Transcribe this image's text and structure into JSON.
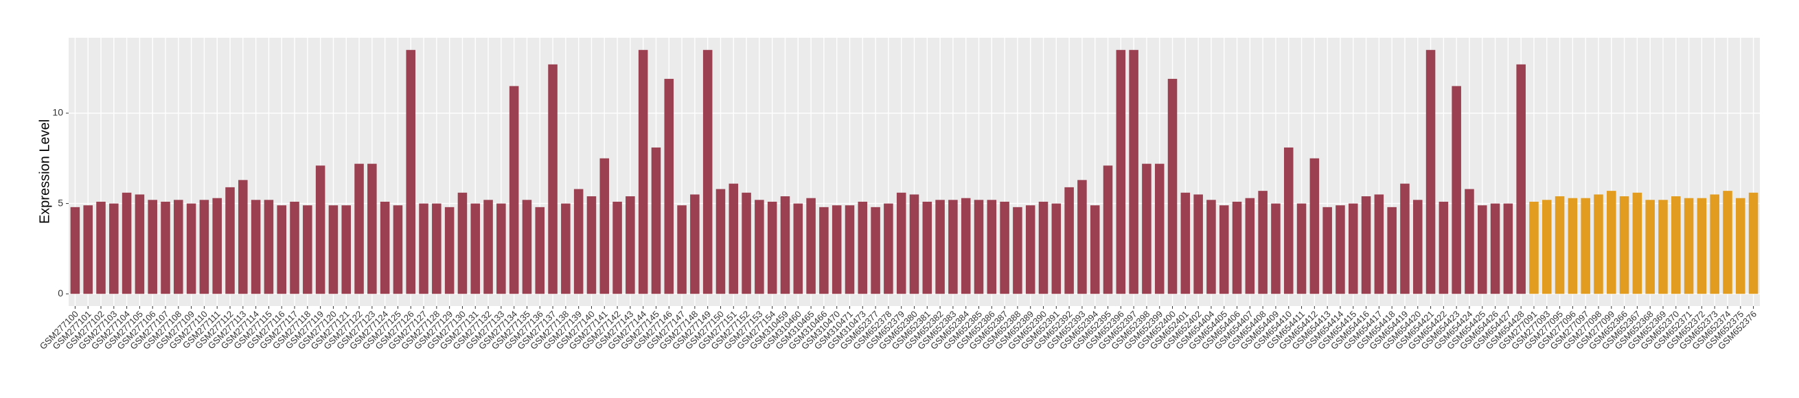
{
  "chart_data": {
    "type": "bar",
    "y_label": "Expression Level",
    "categories": [
      "GSM277100",
      "GSM277101",
      "GSM277102",
      "GSM277103",
      "GSM277104",
      "GSM277105",
      "GSM277106",
      "GSM277107",
      "GSM277108",
      "GSM277109",
      "GSM277110",
      "GSM277111",
      "GSM277112",
      "GSM277113",
      "GSM277114",
      "GSM277115",
      "GSM277116",
      "GSM277117",
      "GSM277118",
      "GSM277119",
      "GSM277120",
      "GSM277121",
      "GSM277122",
      "GSM277123",
      "GSM277124",
      "GSM277125",
      "GSM277126",
      "GSM277127",
      "GSM277128",
      "GSM277129",
      "GSM277130",
      "GSM277131",
      "GSM277132",
      "GSM277133",
      "GSM277134",
      "GSM277135",
      "GSM277136",
      "GSM277137",
      "GSM277138",
      "GSM277139",
      "GSM277140",
      "GSM277141",
      "GSM277142",
      "GSM277143",
      "GSM277144",
      "GSM277145",
      "GSM277146",
      "GSM277147",
      "GSM277148",
      "GSM277149",
      "GSM277150",
      "GSM277151",
      "GSM277152",
      "GSM277153",
      "GSM277154",
      "GSM310459",
      "GSM310460",
      "GSM310465",
      "GSM310466",
      "GSM310470",
      "GSM310471",
      "GSM310473",
      "GSM652377",
      "GSM652378",
      "GSM652379",
      "GSM652380",
      "GSM652381",
      "GSM652382",
      "GSM652383",
      "GSM652384",
      "GSM652385",
      "GSM652386",
      "GSM652387",
      "GSM652388",
      "GSM652389",
      "GSM652390",
      "GSM652391",
      "GSM652392",
      "GSM652393",
      "GSM652394",
      "GSM652395",
      "GSM652396",
      "GSM652397",
      "GSM652398",
      "GSM652399",
      "GSM652400",
      "GSM652401",
      "GSM652402",
      "GSM654404",
      "GSM654405",
      "GSM654406",
      "GSM654407",
      "GSM654408",
      "GSM654409",
      "GSM654410",
      "GSM654411",
      "GSM654412",
      "GSM654413",
      "GSM654414",
      "GSM654415",
      "GSM654416",
      "GSM654417",
      "GSM654418",
      "GSM654419",
      "GSM654420",
      "GSM654421",
      "GSM654422",
      "GSM654423",
      "GSM654424",
      "GSM654425",
      "GSM654426",
      "GSM654427",
      "GSM654428",
      "GSM277091",
      "GSM277093",
      "GSM277095",
      "GSM277096",
      "GSM277097",
      "GSM277098",
      "GSM277099",
      "GSM652366",
      "GSM652367",
      "GSM652368",
      "GSM652369",
      "GSM652370",
      "GSM652371",
      "GSM652372",
      "GSM652373",
      "GSM652374",
      "GSM652375",
      "GSM652376"
    ],
    "values": [
      4.8,
      4.9,
      5.1,
      5.0,
      5.6,
      5.5,
      5.2,
      5.1,
      5.2,
      5.0,
      5.2,
      5.3,
      5.9,
      6.3,
      5.2,
      5.2,
      4.9,
      5.1,
      4.9,
      7.1,
      4.9,
      4.9,
      7.2,
      7.2,
      5.1,
      4.9,
      13.5,
      5.0,
      5.0,
      4.8,
      5.6,
      5.0,
      5.2,
      5.0,
      11.5,
      5.2,
      4.8,
      12.7,
      5.0,
      5.8,
      5.4,
      7.5,
      5.1,
      5.4,
      13.5,
      8.1,
      11.9,
      4.9,
      5.5,
      13.5,
      5.8,
      6.1,
      5.6,
      5.2,
      5.1,
      5.4,
      5.0,
      5.3,
      4.8,
      4.9,
      4.9,
      5.1,
      4.8,
      5.0,
      5.6,
      5.5,
      5.1,
      5.2,
      5.2,
      5.3,
      5.2,
      5.2,
      5.1,
      4.8,
      4.9,
      5.1,
      5.0,
      5.9,
      6.3,
      4.9,
      7.1,
      13.5,
      13.5,
      7.2,
      7.2,
      11.9,
      5.6,
      5.5,
      5.2,
      4.9,
      5.1,
      5.3,
      5.7,
      5.0,
      8.1,
      5.0,
      7.5,
      4.8,
      4.9,
      5.0,
      5.4,
      5.5,
      4.8,
      6.1,
      5.2,
      13.5,
      5.1,
      11.5,
      5.8,
      4.9,
      5.0,
      5.0,
      12.7,
      5.1,
      5.2,
      5.4,
      5.3,
      5.3,
      5.5,
      5.7,
      5.4,
      5.6,
      5.2,
      5.2,
      5.4,
      5.3,
      5.3,
      5.5,
      5.7,
      5.3,
      5.6
    ],
    "colors": [
      "#9a4050",
      "#9a4050",
      "#9a4050",
      "#9a4050",
      "#9a4050",
      "#9a4050",
      "#9a4050",
      "#9a4050",
      "#9a4050",
      "#9a4050",
      "#9a4050",
      "#9a4050",
      "#9a4050",
      "#9a4050",
      "#9a4050",
      "#9a4050",
      "#9a4050",
      "#9a4050",
      "#9a4050",
      "#9a4050",
      "#9a4050",
      "#9a4050",
      "#9a4050",
      "#9a4050",
      "#9a4050",
      "#9a4050",
      "#9a4050",
      "#9a4050",
      "#9a4050",
      "#9a4050",
      "#9a4050",
      "#9a4050",
      "#9a4050",
      "#9a4050",
      "#9a4050",
      "#9a4050",
      "#9a4050",
      "#9a4050",
      "#9a4050",
      "#9a4050",
      "#9a4050",
      "#9a4050",
      "#9a4050",
      "#9a4050",
      "#9a4050",
      "#9a4050",
      "#9a4050",
      "#9a4050",
      "#9a4050",
      "#9a4050",
      "#9a4050",
      "#9a4050",
      "#9a4050",
      "#9a4050",
      "#9a4050",
      "#9a4050",
      "#9a4050",
      "#9a4050",
      "#9a4050",
      "#9a4050",
      "#9a4050",
      "#9a4050",
      "#9a4050",
      "#9a4050",
      "#9a4050",
      "#9a4050",
      "#9a4050",
      "#9a4050",
      "#9a4050",
      "#9a4050",
      "#9a4050",
      "#9a4050",
      "#9a4050",
      "#9a4050",
      "#9a4050",
      "#9a4050",
      "#9a4050",
      "#9a4050",
      "#9a4050",
      "#9a4050",
      "#9a4050",
      "#9a4050",
      "#9a4050",
      "#9a4050",
      "#9a4050",
      "#9a4050",
      "#9a4050",
      "#9a4050",
      "#9a4050",
      "#9a4050",
      "#9a4050",
      "#9a4050",
      "#9a4050",
      "#9a4050",
      "#9a4050",
      "#9a4050",
      "#9a4050",
      "#9a4050",
      "#9a4050",
      "#9a4050",
      "#9a4050",
      "#9a4050",
      "#9a4050",
      "#9a4050",
      "#9a4050",
      "#9a4050",
      "#9a4050",
      "#9a4050",
      "#9a4050",
      "#9a4050",
      "#9a4050",
      "#9a4050",
      "#9a4050",
      "#e29c1f",
      "#e29c1f",
      "#e29c1f",
      "#e29c1f",
      "#e29c1f",
      "#e29c1f",
      "#e29c1f",
      "#e29c1f",
      "#e29c1f",
      "#e29c1f",
      "#e29c1f",
      "#e29c1f",
      "#e29c1f",
      "#e29c1f",
      "#e29c1f",
      "#e29c1f",
      "#e29c1f",
      "#e29c1f"
    ],
    "ylim": [
      -0.675,
      14.175
    ],
    "yticks": [
      0,
      5,
      10
    ],
    "grid": true
  }
}
